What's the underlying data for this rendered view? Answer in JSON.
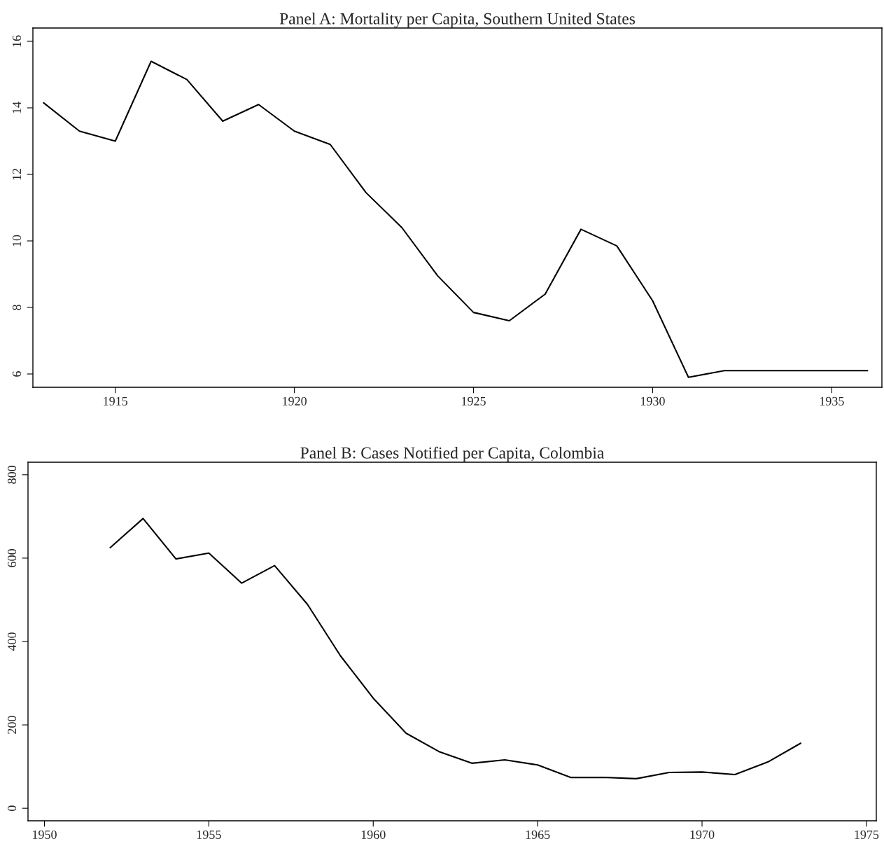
{
  "chart_data": [
    {
      "type": "line",
      "title": "Panel A: Mortality per Capita, Southern United States",
      "x": [
        1913,
        1914,
        1915,
        1916,
        1917,
        1918,
        1919,
        1920,
        1921,
        1922,
        1923,
        1924,
        1925,
        1926,
        1927,
        1928,
        1929,
        1930,
        1931,
        1932,
        1933,
        1934,
        1935,
        1936
      ],
      "series": [
        {
          "color": "#000000",
          "values": [
            14.15,
            13.3,
            13.0,
            15.4,
            14.85,
            13.6,
            14.1,
            13.3,
            12.9,
            11.45,
            10.4,
            8.95,
            7.85,
            7.6,
            8.4,
            10.35,
            9.85,
            8.2,
            5.9,
            6.1,
            6.1,
            6.1,
            6.1,
            6.1
          ]
        }
      ],
      "xlim": [
        1912.7,
        1936.4
      ],
      "xticks": [
        1915,
        1920,
        1925,
        1930,
        1935
      ],
      "ylim": [
        5.6,
        16.4
      ],
      "yticks": [
        6,
        8,
        10,
        12,
        14,
        16
      ]
    },
    {
      "type": "line",
      "title": "Panel B: Cases Notified per Capita, Colombia",
      "x": [
        1952,
        1953,
        1954,
        1955,
        1956,
        1957,
        1958,
        1959,
        1960,
        1961,
        1962,
        1963,
        1964,
        1965,
        1966,
        1967,
        1968,
        1969,
        1970,
        1971,
        1972,
        1973
      ],
      "series": [
        {
          "color": "#000000",
          "values": [
            625,
            695,
            598,
            612,
            540,
            582,
            489,
            366,
            264,
            180,
            136,
            108,
            116,
            104,
            74,
            74,
            71,
            86,
            87,
            81,
            111,
            156
          ]
        }
      ],
      "xlim": [
        1949.5,
        1975.3
      ],
      "xticks": [
        1950,
        1955,
        1960,
        1965,
        1970,
        1975
      ],
      "ylim": [
        -30,
        830
      ],
      "yticks": [
        0,
        200,
        400,
        600,
        800
      ]
    }
  ]
}
